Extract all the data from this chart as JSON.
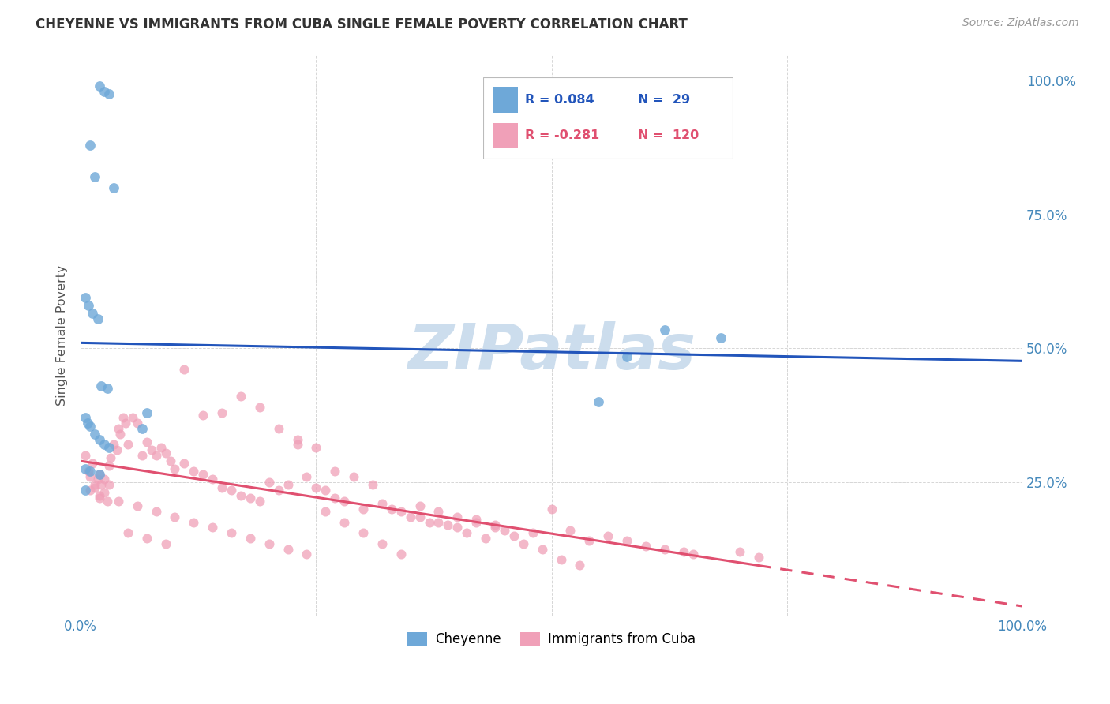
{
  "title": "CHEYENNE VS IMMIGRANTS FROM CUBA SINGLE FEMALE POVERTY CORRELATION CHART",
  "source": "Source: ZipAtlas.com",
  "ylabel": "Single Female Poverty",
  "legend_label1": "Cheyenne",
  "legend_label2": "Immigrants from Cuba",
  "r1": 0.084,
  "n1": 29,
  "r2": -0.281,
  "n2": 120,
  "cheyenne_color": "#6ea8d8",
  "cuba_color": "#f0a0b8",
  "line1_color": "#2255bb",
  "line2_color": "#e05070",
  "watermark": "ZIPatlas",
  "cheyenne_x": [
    0.02,
    0.025,
    0.03,
    0.01,
    0.015,
    0.035,
    0.005,
    0.008,
    0.012,
    0.018,
    0.022,
    0.028,
    0.005,
    0.007,
    0.01,
    0.015,
    0.02,
    0.025,
    0.03,
    0.065,
    0.07,
    0.62,
    0.68,
    0.58,
    0.55,
    0.005,
    0.01,
    0.02,
    0.005
  ],
  "cheyenne_y": [
    0.99,
    0.98,
    0.975,
    0.88,
    0.82,
    0.8,
    0.595,
    0.58,
    0.565,
    0.555,
    0.43,
    0.425,
    0.37,
    0.36,
    0.355,
    0.34,
    0.33,
    0.32,
    0.315,
    0.35,
    0.38,
    0.535,
    0.52,
    0.485,
    0.4,
    0.275,
    0.27,
    0.265,
    0.235
  ],
  "cuba_x": [
    0.005,
    0.008,
    0.01,
    0.012,
    0.015,
    0.018,
    0.02,
    0.022,
    0.025,
    0.028,
    0.03,
    0.032,
    0.035,
    0.038,
    0.04,
    0.042,
    0.045,
    0.048,
    0.05,
    0.055,
    0.06,
    0.065,
    0.07,
    0.075,
    0.08,
    0.085,
    0.09,
    0.095,
    0.1,
    0.11,
    0.12,
    0.13,
    0.14,
    0.15,
    0.16,
    0.17,
    0.18,
    0.19,
    0.2,
    0.21,
    0.22,
    0.23,
    0.24,
    0.25,
    0.26,
    0.27,
    0.28,
    0.3,
    0.32,
    0.34,
    0.36,
    0.38,
    0.4,
    0.42,
    0.44,
    0.46,
    0.48,
    0.5,
    0.52,
    0.54,
    0.56,
    0.58,
    0.6,
    0.62,
    0.64,
    0.65,
    0.7,
    0.72,
    0.02,
    0.025,
    0.03,
    0.015,
    0.01,
    0.02,
    0.04,
    0.06,
    0.08,
    0.1,
    0.12,
    0.14,
    0.16,
    0.18,
    0.2,
    0.22,
    0.24,
    0.26,
    0.28,
    0.3,
    0.32,
    0.34,
    0.36,
    0.38,
    0.4,
    0.42,
    0.44,
    0.05,
    0.07,
    0.09,
    0.11,
    0.13,
    0.15,
    0.17,
    0.19,
    0.21,
    0.23,
    0.25,
    0.27,
    0.29,
    0.31,
    0.33,
    0.35,
    0.37,
    0.39,
    0.41,
    0.43,
    0.45,
    0.47,
    0.49,
    0.51,
    0.53
  ],
  "cuba_y": [
    0.3,
    0.27,
    0.26,
    0.285,
    0.24,
    0.255,
    0.22,
    0.245,
    0.23,
    0.215,
    0.28,
    0.295,
    0.32,
    0.31,
    0.35,
    0.34,
    0.37,
    0.36,
    0.32,
    0.37,
    0.36,
    0.3,
    0.325,
    0.31,
    0.3,
    0.315,
    0.305,
    0.29,
    0.275,
    0.285,
    0.27,
    0.265,
    0.255,
    0.24,
    0.235,
    0.225,
    0.22,
    0.215,
    0.25,
    0.235,
    0.245,
    0.32,
    0.26,
    0.24,
    0.235,
    0.22,
    0.215,
    0.2,
    0.21,
    0.195,
    0.185,
    0.175,
    0.165,
    0.18,
    0.17,
    0.15,
    0.155,
    0.2,
    0.16,
    0.14,
    0.15,
    0.14,
    0.13,
    0.125,
    0.12,
    0.115,
    0.12,
    0.11,
    0.265,
    0.255,
    0.245,
    0.245,
    0.235,
    0.225,
    0.215,
    0.205,
    0.195,
    0.185,
    0.175,
    0.165,
    0.155,
    0.145,
    0.135,
    0.125,
    0.115,
    0.195,
    0.175,
    0.155,
    0.135,
    0.115,
    0.205,
    0.195,
    0.185,
    0.175,
    0.165,
    0.155,
    0.145,
    0.135,
    0.46,
    0.375,
    0.38,
    0.41,
    0.39,
    0.35,
    0.33,
    0.315,
    0.27,
    0.26,
    0.245,
    0.2,
    0.185,
    0.175,
    0.17,
    0.155,
    0.145,
    0.16,
    0.135,
    0.125,
    0.105,
    0.095
  ],
  "watermark_color": "#ccdded",
  "bg_color": "#ffffff",
  "grid_color": "#cccccc",
  "xlim": [
    0,
    1.0
  ],
  "ylim": [
    0,
    1.05
  ]
}
